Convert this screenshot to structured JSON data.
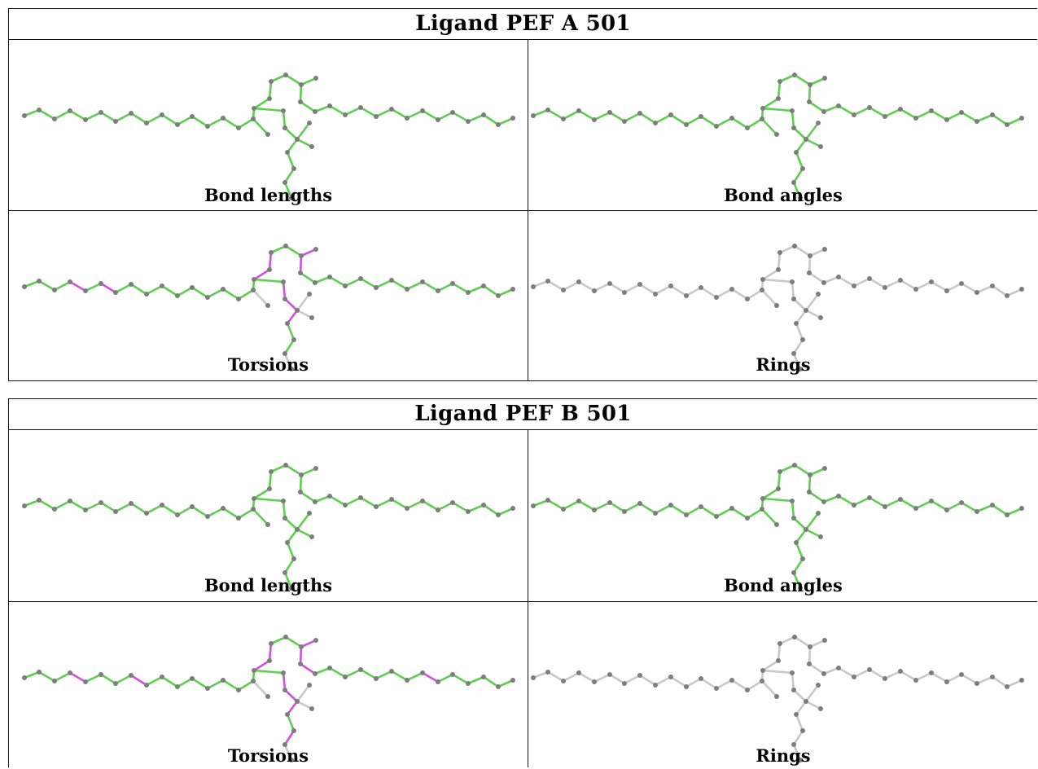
{
  "panels": [
    {
      "title": "Ligand PEF A 501",
      "cells": [
        {
          "caption": "Bond lengths",
          "scheme": "lengths"
        },
        {
          "caption": "Bond angles",
          "scheme": "angles"
        },
        {
          "caption": "Torsions",
          "scheme": "torsionsA"
        },
        {
          "caption": "Rings",
          "scheme": "rings"
        }
      ]
    },
    {
      "title": "Ligand PEF B 501",
      "cells": [
        {
          "caption": "Bond lengths",
          "scheme": "lengths"
        },
        {
          "caption": "Bond angles",
          "scheme": "angles"
        },
        {
          "caption": "Torsions",
          "scheme": "torsionsB"
        },
        {
          "caption": "Rings",
          "scheme": "rings"
        }
      ]
    }
  ],
  "colors": {
    "ok": "#5dcf4f",
    "outlier": "#d44ee0",
    "neutral": "#c9c9c9",
    "atom": "#7d7d7d",
    "grid": "#111111"
  }
}
